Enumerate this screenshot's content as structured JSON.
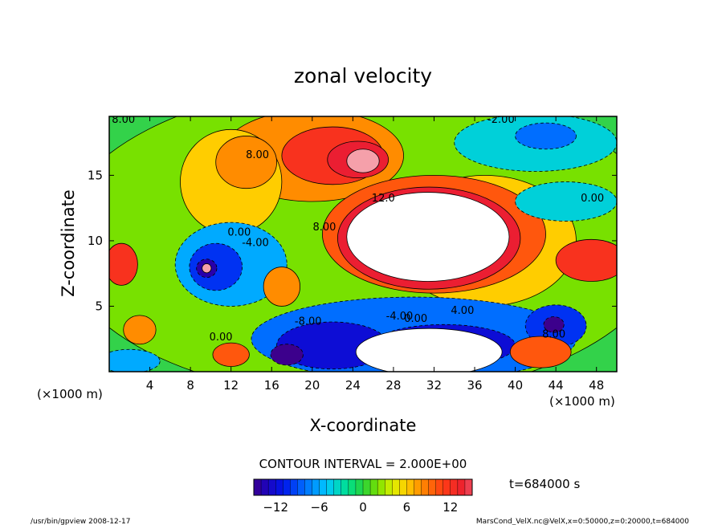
{
  "chart_data": {
    "type": "heatmap",
    "title": "zonal velocity",
    "xlabel": "X-coordinate",
    "ylabel": "Z-coordinate",
    "x_unit_left": "(×1000 m)",
    "x_unit_right": "(×1000 m)",
    "xlim": [
      0,
      50
    ],
    "ylim": [
      0,
      19.5
    ],
    "x_ticks": [
      4,
      8,
      12,
      16,
      20,
      24,
      28,
      32,
      36,
      40,
      44,
      48
    ],
    "y_ticks": [
      5,
      10,
      15
    ],
    "contour_interval_label": "CONTOUR INTERVAL = 2.000E+00",
    "time_label": "t=684000 s",
    "colorbar": {
      "min": -15,
      "max": 15,
      "ticks": [
        -12,
        -6,
        0,
        6,
        12
      ]
    },
    "contour_labels": [
      {
        "text": "8.00",
        "x": 1.4,
        "y": 19.0
      },
      {
        "text": "8.00",
        "x": 14.6,
        "y": 16.3
      },
      {
        "text": "12.0",
        "x": 27.0,
        "y": 13.0
      },
      {
        "text": "8.00",
        "x": 21.2,
        "y": 10.8
      },
      {
        "text": "0.00",
        "x": 12.8,
        "y": 10.4
      },
      {
        "text": "-4.00",
        "x": 14.4,
        "y": 9.6
      },
      {
        "text": "-4.00",
        "x": 28.6,
        "y": 4.0
      },
      {
        "text": "0.00",
        "x": 30.2,
        "y": 3.8
      },
      {
        "text": "4.00",
        "x": 34.8,
        "y": 4.4
      },
      {
        "text": "0.00",
        "x": 11.0,
        "y": 2.4
      },
      {
        "text": "-8.00",
        "x": 19.6,
        "y": 3.6
      },
      {
        "text": "8.00",
        "x": 43.8,
        "y": 2.6
      },
      {
        "text": "0.00",
        "x": 47.6,
        "y": 13.0
      },
      {
        "text": "-2.00",
        "x": 38.6,
        "y": 19.0
      }
    ],
    "regions": [
      {
        "v": 2,
        "x": 25,
        "y": 10,
        "rx": 30,
        "ry": 12
      },
      {
        "v": 8,
        "x": 20,
        "y": 16.5,
        "rx": 9,
        "ry": 3.5
      },
      {
        "v": 12,
        "x": 22,
        "y": 16.5,
        "rx": 5,
        "ry": 2.2
      },
      {
        "v": 14,
        "x": 24.5,
        "y": 16.2,
        "rx": 3,
        "ry": 1.4
      },
      {
        "v": 16,
        "x": 25.0,
        "y": 16.1,
        "rx": 1.6,
        "ry": 0.9
      },
      {
        "v": 6,
        "x": 12,
        "y": 14.5,
        "rx": 5,
        "ry": 4
      },
      {
        "v": 8,
        "x": 13.5,
        "y": 16.0,
        "rx": 3,
        "ry": 2
      },
      {
        "v": -4,
        "x": 42,
        "y": 17.5,
        "rx": 8,
        "ry": 2.2
      },
      {
        "v": -8,
        "x": 43,
        "y": 18.0,
        "rx": 3,
        "ry": 1
      },
      {
        "v": -6,
        "x": 12,
        "y": 8.2,
        "rx": 5.5,
        "ry": 3.2
      },
      {
        "v": -10,
        "x": 10.5,
        "y": 8.0,
        "rx": 2.6,
        "ry": 1.8
      },
      {
        "v": -14,
        "x": 9.6,
        "y": 7.9,
        "rx": 1.0,
        "ry": 0.7
      },
      {
        "v": 16,
        "x": 9.6,
        "y": 7.9,
        "rx": 0.45,
        "ry": 0.35
      },
      {
        "v": 6,
        "x": 37,
        "y": 10,
        "rx": 9,
        "ry": 5
      },
      {
        "v": 10,
        "x": 32,
        "y": 10.5,
        "rx": 11,
        "ry": 4.5
      },
      {
        "v": 14,
        "x": 31.5,
        "y": 10.2,
        "rx": 9,
        "ry": 3.9
      },
      {
        "v": 18,
        "x": 31.4,
        "y": 10.3,
        "rx": 8,
        "ry": 3.4
      },
      {
        "v": -8,
        "x": 30,
        "y": 2.5,
        "rx": 16,
        "ry": 3.2
      },
      {
        "v": -12,
        "x": 22,
        "y": 2.0,
        "rx": 5.5,
        "ry": 1.8
      },
      {
        "v": -15,
        "x": 17.5,
        "y": 1.3,
        "rx": 1.6,
        "ry": 0.8
      },
      {
        "v": -12,
        "x": 33,
        "y": 2.0,
        "rx": 7,
        "ry": 1.6
      },
      {
        "v": 18,
        "x": 31.5,
        "y": 1.5,
        "rx": 7.2,
        "ry": 1.8
      },
      {
        "v": -10,
        "x": 44,
        "y": 3.5,
        "rx": 3,
        "ry": 1.6
      },
      {
        "v": -15,
        "x": 43.8,
        "y": 3.6,
        "rx": 1.0,
        "ry": 0.6
      },
      {
        "v": 10,
        "x": 42.5,
        "y": 1.5,
        "rx": 3,
        "ry": 1.2
      },
      {
        "v": 12,
        "x": 1.2,
        "y": 8.2,
        "rx": 1.6,
        "ry": 1.6
      },
      {
        "v": 12,
        "x": 47.5,
        "y": 8.5,
        "rx": 3.5,
        "ry": 1.6
      },
      {
        "v": 8,
        "x": 3,
        "y": 3.2,
        "rx": 1.6,
        "ry": 1.1
      },
      {
        "v": 8,
        "x": 17,
        "y": 6.5,
        "rx": 1.8,
        "ry": 1.5
      },
      {
        "v": 10,
        "x": 12,
        "y": 1.3,
        "rx": 1.8,
        "ry": 0.9
      },
      {
        "v": -4,
        "x": 45,
        "y": 13,
        "rx": 5,
        "ry": 1.5
      },
      {
        "v": -6,
        "x": 2,
        "y": 0.8,
        "rx": 3,
        "ry": 0.9
      }
    ]
  },
  "footer": {
    "left_note": "/usr/bin/gpview  2008-12-17",
    "right_note": "MarsCond_VelX.nc@VelX,x=0:50000,z=0:20000,t=684000"
  }
}
